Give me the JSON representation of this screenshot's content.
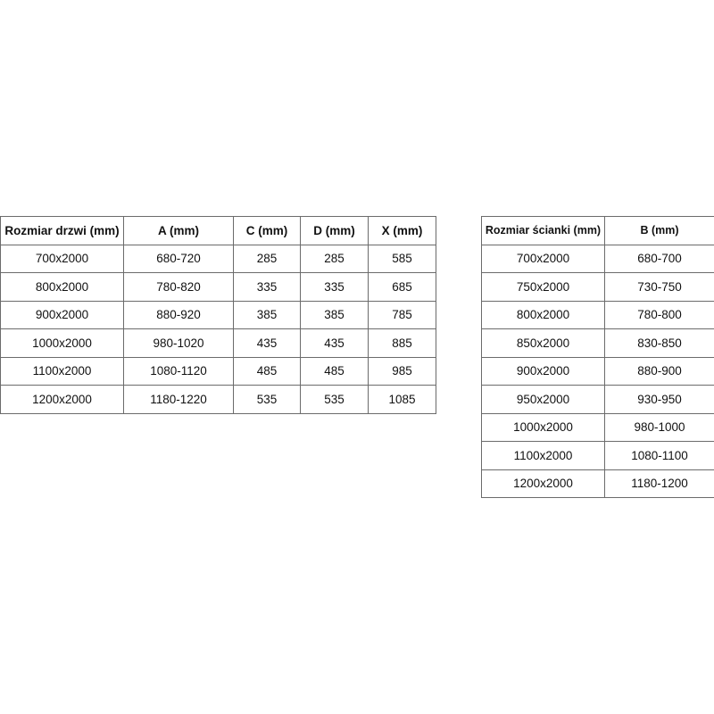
{
  "door_table": {
    "headers": [
      "Rozmiar drzwi (mm)",
      "A (mm)",
      "C (mm)",
      "D (mm)",
      "X (mm)"
    ],
    "rows": [
      [
        "700x2000",
        "680-720",
        "285",
        "285",
        "585"
      ],
      [
        "800x2000",
        "780-820",
        "335",
        "335",
        "685"
      ],
      [
        "900x2000",
        "880-920",
        "385",
        "385",
        "785"
      ],
      [
        "1000x2000",
        "980-1020",
        "435",
        "435",
        "885"
      ],
      [
        "1100x2000",
        "1080-1120",
        "485",
        "485",
        "985"
      ],
      [
        "1200x2000",
        "1180-1220",
        "535",
        "535",
        "1085"
      ]
    ]
  },
  "wall_table": {
    "headers": [
      "Rozmiar ścianki (mm)",
      "B (mm)"
    ],
    "rows": [
      [
        "700x2000",
        "680-700"
      ],
      [
        "750x2000",
        "730-750"
      ],
      [
        "800x2000",
        "780-800"
      ],
      [
        "850x2000",
        "830-850"
      ],
      [
        "900x2000",
        "880-900"
      ],
      [
        "950x2000",
        "930-950"
      ],
      [
        "1000x2000",
        "980-1000"
      ],
      [
        "1100x2000",
        "1080-1100"
      ],
      [
        "1200x2000",
        "1180-1200"
      ]
    ]
  }
}
